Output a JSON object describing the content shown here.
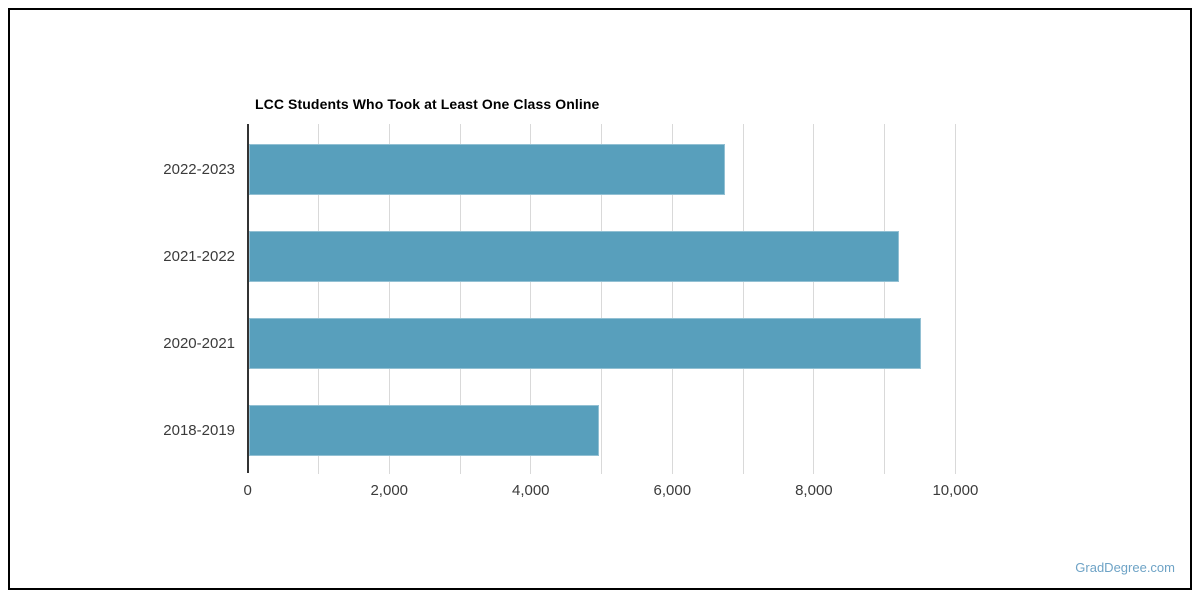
{
  "chart_data": {
    "type": "bar",
    "orientation": "horizontal",
    "title": "LCC Students Who Took at Least One Class Online",
    "categories": [
      "2022-2023",
      "2021-2022",
      "2020-2021",
      "2018-2019"
    ],
    "values": [
      6740,
      9210,
      9515,
      4965
    ],
    "xlim": [
      0,
      10000
    ],
    "x_major_ticks": [
      {
        "value": 0,
        "label": "0"
      },
      {
        "value": 2000,
        "label": "2,000"
      },
      {
        "value": 4000,
        "label": "4,000"
      },
      {
        "value": 6000,
        "label": "6,000"
      },
      {
        "value": 8000,
        "label": "8,000"
      },
      {
        "value": 10000,
        "label": "10,000"
      }
    ],
    "x_minor_tick_interval": 1000,
    "grid": true,
    "legend": false,
    "colors": {
      "bar": "#589fbc",
      "gridline": "#d9d9d9",
      "axis_line": "#333333",
      "title": "#000000",
      "tick_label": "#3b3b3b"
    }
  },
  "branding": {
    "watermark": "GradDegree.com",
    "watermark_color": "#6ea3c6"
  }
}
